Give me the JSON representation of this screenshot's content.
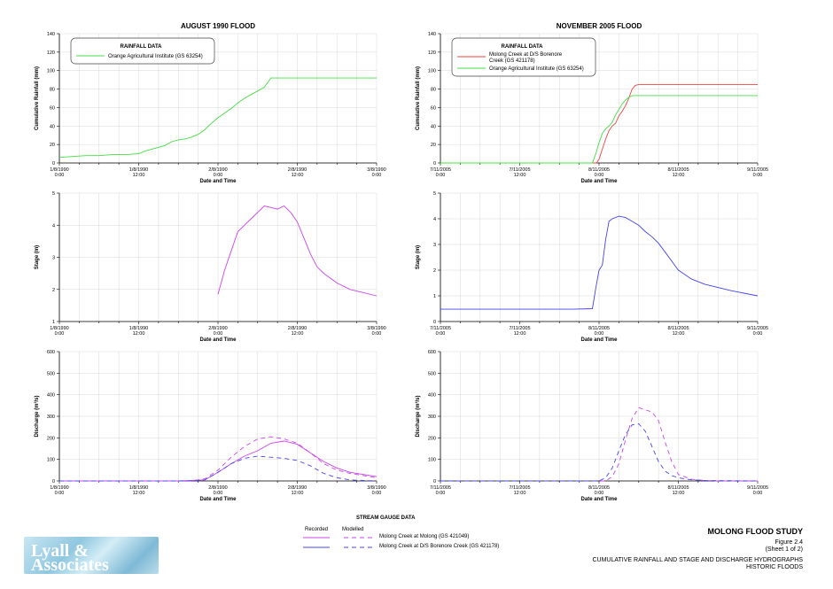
{
  "titles": {
    "left": "AUGUST 1990 FLOOD",
    "right": "NOVEMBER 2005 FLOOD"
  },
  "axis_labels": {
    "x": "Date and Time",
    "rain": "Cumulative Rainfall (mm)",
    "stage": "Stage (m)",
    "discharge": "Discharge (m³/s)"
  },
  "rainfall_legend": {
    "title": "RAINFALL DATA",
    "left": [
      "Orange Agricultural Institute (GS 63254)"
    ],
    "right": [
      "Molong Creek at D/S Borenore",
      "Creek (GS 421178)",
      "Orange Agricultural Institute (GS 63254)"
    ]
  },
  "stream_legend": {
    "title": "STREAM GAUGE DATA",
    "recorded": "Recorded",
    "modelled": "Modelled",
    "items": [
      "Molong Creek at Molong (GS 421049)",
      "Molong Creek at D/S Borenore Creek (GS 421178)"
    ]
  },
  "title_block": {
    "study": "MOLONG FLOOD STUDY",
    "figure": "Figure 2.4",
    "sheet": "(Sheet 1 of 2)",
    "line1": "CUMULATIVE RAINFALL AND STAGE AND DISCHARGE HYDROGRAPHS",
    "line2": "HISTORIC FLOODS"
  },
  "logo": {
    "line1": "Lyall &",
    "line2": "Associates"
  },
  "colors": {
    "green": "#44dd44",
    "red": "#ee4444",
    "magenta": "#cc44ee",
    "blue": "#4444ee",
    "grid": "#d8d8d8"
  },
  "chart_data": [
    {
      "type": "line",
      "panel": "rain-left",
      "x_ticks": [
        [
          "1/8/1990",
          "0:00"
        ],
        [
          "1/8/1990",
          "12:00"
        ],
        [
          "2/8/1990",
          "0:00"
        ],
        [
          "2/8/1990",
          "12:00"
        ],
        [
          "3/8/1990",
          "0:00"
        ]
      ],
      "xlim": [
        0,
        48
      ],
      "ylim": [
        0,
        140
      ],
      "y_ticks": [
        0,
        20,
        40,
        60,
        80,
        100,
        120,
        140
      ],
      "series": [
        {
          "name": "Orange Agricultural Institute (GS 63254)",
          "color": "#44dd44",
          "x": [
            0,
            2,
            4,
            6,
            8,
            10,
            12,
            13,
            14,
            15,
            16,
            17,
            18,
            19,
            20,
            21,
            22,
            23,
            24,
            25,
            26,
            27,
            28,
            29,
            30,
            31,
            32,
            33,
            34,
            36,
            38,
            40,
            42,
            44,
            46,
            48
          ],
          "y": [
            6,
            7,
            8,
            8,
            9,
            9,
            10,
            13,
            15,
            17,
            19,
            23,
            25,
            26,
            28,
            31,
            36,
            43,
            49,
            54,
            59,
            65,
            70,
            74,
            78,
            82,
            92,
            92,
            92,
            92,
            92,
            92,
            92,
            92,
            92,
            92
          ]
        }
      ]
    },
    {
      "type": "line",
      "panel": "rain-right",
      "x_ticks": [
        [
          "7/11/2005",
          "0:00"
        ],
        [
          "7/11/2005",
          "12:00"
        ],
        [
          "8/11/2005",
          "0:00"
        ],
        [
          "8/11/2005",
          "12:00"
        ],
        [
          "9/11/2005",
          "0:00"
        ]
      ],
      "xlim": [
        0,
        48
      ],
      "ylim": [
        0,
        140
      ],
      "y_ticks": [
        0,
        20,
        40,
        60,
        80,
        100,
        120,
        140
      ],
      "series": [
        {
          "name": "Molong Creek at D/S Borenore Creek (GS 421178)",
          "color": "#ee4444",
          "x": [
            0,
            23.6,
            24,
            24.5,
            25,
            25.5,
            26,
            26.5,
            27,
            27.5,
            28,
            28.5,
            29,
            29.5,
            30,
            31,
            33,
            36,
            40,
            44,
            48
          ],
          "y": [
            0,
            0,
            4,
            15,
            26,
            35,
            40,
            43,
            51,
            56,
            62,
            70,
            80,
            84,
            85,
            85,
            85,
            85,
            85,
            85,
            85
          ]
        },
        {
          "name": "Orange Agricultural Institute (GS 63254)",
          "color": "#44dd44",
          "x": [
            0,
            23,
            23.5,
            24,
            24.5,
            25,
            25.5,
            26,
            26.5,
            27,
            27.5,
            28,
            28.5,
            29,
            30,
            31,
            33,
            36,
            40,
            44,
            48
          ],
          "y": [
            0,
            0,
            10,
            22,
            32,
            37,
            40,
            44,
            52,
            58,
            64,
            68,
            71,
            73,
            73,
            73,
            73,
            73,
            73,
            73,
            73
          ]
        }
      ]
    },
    {
      "type": "line",
      "panel": "stage-left",
      "x_ticks": [
        [
          "1/8/1990",
          "0:00"
        ],
        [
          "1/8/1990",
          "12:00"
        ],
        [
          "2/8/1990",
          "0:00"
        ],
        [
          "2/8/1990",
          "12:00"
        ],
        [
          "3/8/1990",
          "0:00"
        ]
      ],
      "xlim": [
        0,
        48
      ],
      "ylim": [
        1,
        5
      ],
      "y_ticks": [
        1,
        2,
        3,
        4,
        5
      ],
      "series": [
        {
          "name": "Molong Creek at Molong (GS 421049)",
          "color": "#cc44ee",
          "x": [
            24,
            25,
            26,
            27,
            28,
            29,
            30,
            31,
            32,
            33,
            34,
            35,
            36,
            37,
            38,
            39,
            40,
            42,
            44,
            46,
            48
          ],
          "y": [
            1.85,
            2.6,
            3.2,
            3.8,
            4.0,
            4.2,
            4.4,
            4.6,
            4.55,
            4.5,
            4.6,
            4.4,
            4.1,
            3.6,
            3.1,
            2.7,
            2.5,
            2.2,
            2.0,
            1.9,
            1.8
          ]
        }
      ]
    },
    {
      "type": "line",
      "panel": "stage-right",
      "x_ticks": [
        [
          "7/11/2005",
          "0:00"
        ],
        [
          "7/11/2005",
          "12:00"
        ],
        [
          "8/11/2005",
          "0:00"
        ],
        [
          "8/11/2005",
          "12:00"
        ],
        [
          "9/11/2005",
          "0:00"
        ]
      ],
      "xlim": [
        0,
        48
      ],
      "ylim": [
        0,
        5
      ],
      "y_ticks": [
        0,
        1,
        2,
        3,
        4,
        5
      ],
      "series": [
        {
          "name": "Molong Creek at D/S Borenore Creek (GS 421178)",
          "color": "#4444ee",
          "x": [
            0,
            10,
            20,
            23,
            23.5,
            24,
            24.5,
            25,
            25.5,
            26,
            27,
            28,
            29,
            30,
            31,
            32,
            33,
            34,
            36,
            38,
            40,
            44,
            48
          ],
          "y": [
            0.48,
            0.48,
            0.48,
            0.5,
            1.3,
            2.0,
            2.2,
            3.2,
            3.9,
            4.0,
            4.1,
            4.05,
            3.9,
            3.75,
            3.5,
            3.3,
            3.05,
            2.7,
            2.0,
            1.65,
            1.45,
            1.2,
            1.0
          ]
        }
      ]
    },
    {
      "type": "line",
      "panel": "discharge-left",
      "x_ticks": [
        [
          "1/8/1990",
          "0:00"
        ],
        [
          "1/8/1990",
          "12:00"
        ],
        [
          "2/8/1990",
          "0:00"
        ],
        [
          "2/8/1990",
          "12:00"
        ],
        [
          "3/8/1990",
          "0:00"
        ]
      ],
      "xlim": [
        0,
        48
      ],
      "ylim": [
        0,
        600
      ],
      "y_ticks": [
        0,
        100,
        200,
        300,
        400,
        500,
        600
      ],
      "series": [
        {
          "name": "Recorded - Molong Creek at Molong (GS 421049)",
          "color": "#cc44ee",
          "dash": "",
          "x": [
            0,
            18,
            22,
            24,
            26,
            28,
            30,
            32,
            34,
            36,
            38,
            40,
            42,
            44,
            46,
            48
          ],
          "y": [
            0,
            0,
            5,
            40,
            80,
            115,
            140,
            175,
            185,
            170,
            130,
            90,
            60,
            40,
            30,
            20
          ]
        },
        {
          "name": "Modelled - Molong Creek at Molong (GS 421049)",
          "color": "#cc44ee",
          "dash": "5,4",
          "x": [
            0,
            20,
            22,
            24,
            26,
            28,
            30,
            32,
            34,
            36,
            38,
            40,
            42,
            44,
            46,
            48
          ],
          "y": [
            0,
            0,
            10,
            50,
            110,
            160,
            195,
            205,
            195,
            175,
            130,
            80,
            50,
            35,
            25,
            15
          ]
        },
        {
          "name": "Modelled - Molong Creek at D/S Borenore Creek (GS 421178)",
          "color": "#4444ee",
          "dash": "5,4",
          "x": [
            0,
            20,
            22,
            24,
            26,
            28,
            30,
            32,
            34,
            36,
            38,
            40,
            42,
            44,
            46,
            48
          ],
          "y": [
            0,
            0,
            5,
            40,
            80,
            105,
            115,
            110,
            105,
            95,
            70,
            35,
            15,
            5,
            2,
            0
          ]
        }
      ]
    },
    {
      "type": "line",
      "panel": "discharge-right",
      "x_ticks": [
        [
          "7/11/2005",
          "0:00"
        ],
        [
          "7/11/2005",
          "12:00"
        ],
        [
          "8/11/2005",
          "0:00"
        ],
        [
          "8/11/2005",
          "12:00"
        ],
        [
          "9/11/2005",
          "0:00"
        ]
      ],
      "xlim": [
        0,
        48
      ],
      "ylim": [
        0,
        600
      ],
      "y_ticks": [
        0,
        100,
        200,
        300,
        400,
        500,
        600
      ],
      "series": [
        {
          "name": "Modelled - Molong Creek at Molong (GS 421049)",
          "color": "#cc44ee",
          "dash": "5,4",
          "x": [
            0,
            25,
            26,
            27,
            28,
            29,
            30,
            31,
            32,
            33,
            34,
            35,
            36,
            38,
            40,
            42,
            44,
            48
          ],
          "y": [
            0,
            0,
            20,
            80,
            190,
            290,
            340,
            330,
            320,
            280,
            180,
            90,
            30,
            8,
            2,
            0,
            0,
            0
          ]
        },
        {
          "name": "Modelled - Molong Creek at D/S Borenore Creek (GS 421178)",
          "color": "#4444ee",
          "dash": "5,4",
          "x": [
            0,
            24,
            25,
            26,
            27,
            28,
            29,
            30,
            31,
            32,
            33,
            34,
            35,
            36,
            38,
            40,
            48
          ],
          "y": [
            0,
            0,
            15,
            60,
            140,
            215,
            260,
            265,
            230,
            160,
            90,
            45,
            25,
            15,
            5,
            2,
            0
          ]
        }
      ]
    }
  ]
}
